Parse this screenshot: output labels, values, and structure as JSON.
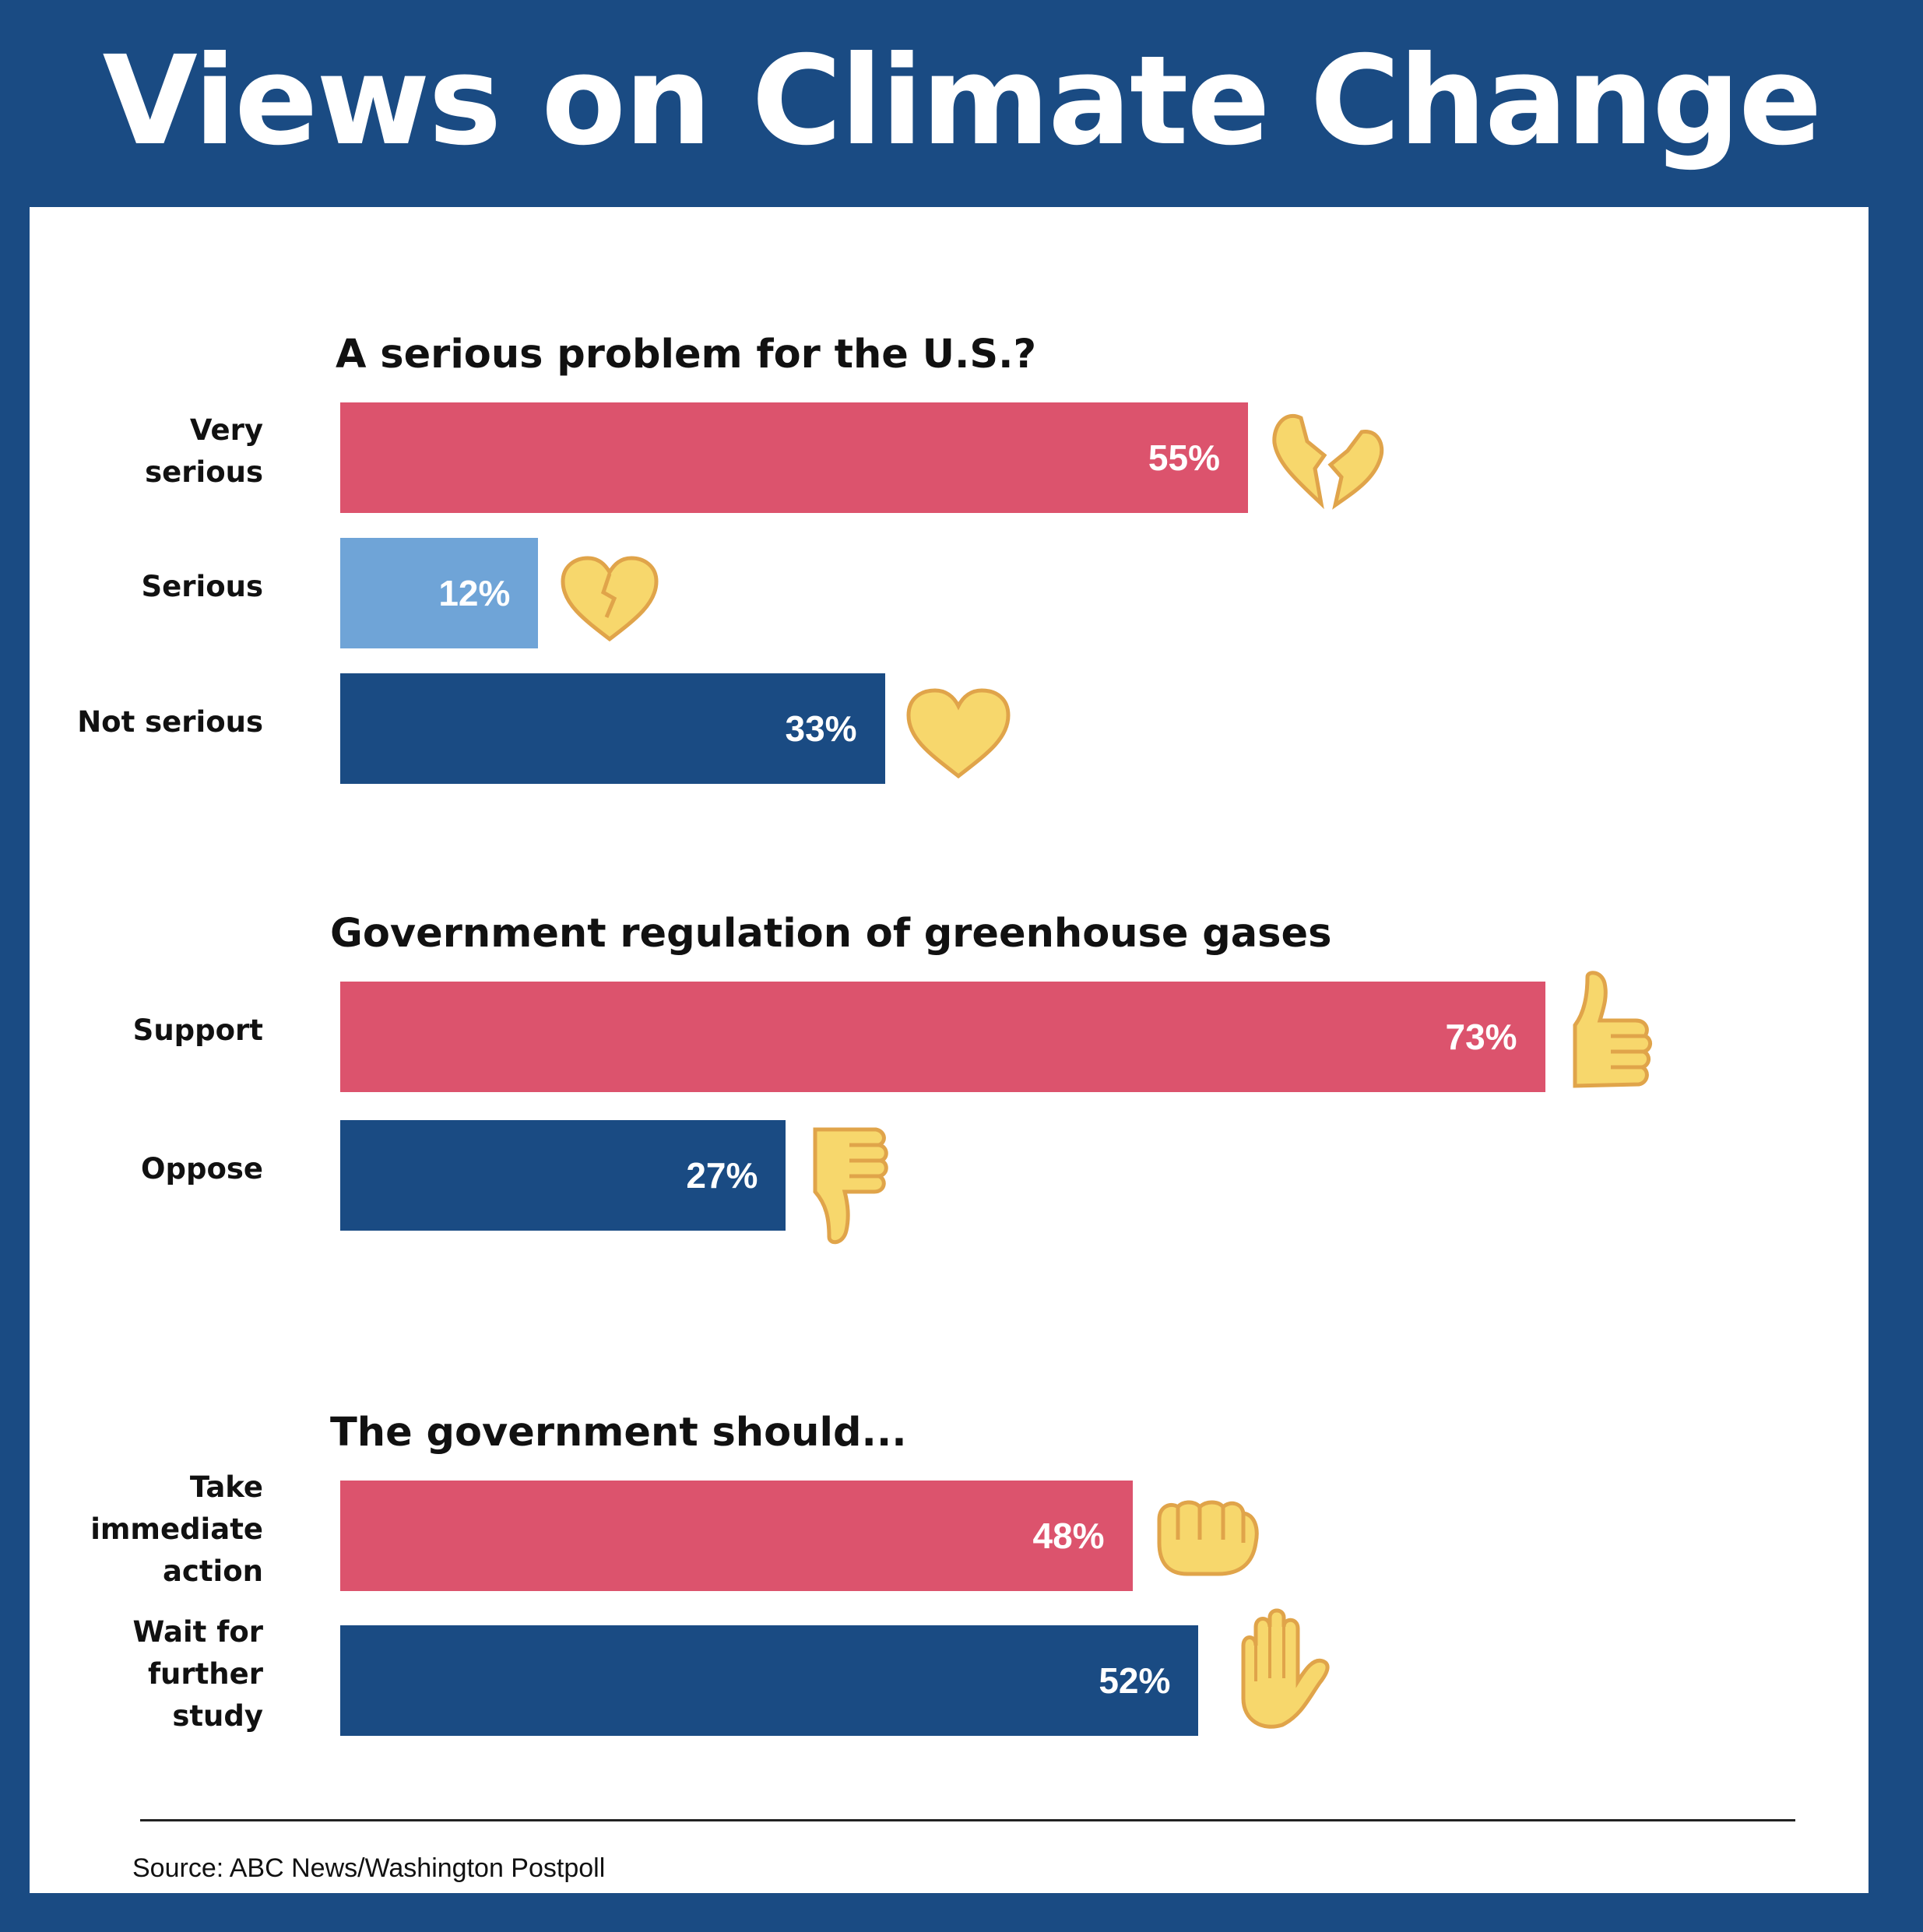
{
  "title": "Views on Climate Change",
  "source": "Source: ABC News/Washington Postpoll",
  "colors": {
    "frame": "#1a4b83",
    "pink": "#dc536d",
    "light_blue": "#6fa4d7",
    "dark_blue": "#1a4b83",
    "emoji": "#f7d76c",
    "emoji_outline": "#e0a44a"
  },
  "chart_data": [
    {
      "type": "bar",
      "orientation": "horizontal",
      "title": "A serious problem for the U.S.?",
      "categories": [
        "Very\nserious",
        "Serious",
        "Not serious"
      ],
      "values": [
        55,
        12,
        33
      ],
      "value_labels": [
        "55%",
        "12%",
        "33%"
      ],
      "colors": [
        "#dc536d",
        "#6fa4d7",
        "#1a4b83"
      ],
      "icons": [
        "broken-heart-icon",
        "cracked-heart-icon",
        "heart-icon"
      ],
      "xlim": [
        0,
        100
      ]
    },
    {
      "type": "bar",
      "orientation": "horizontal",
      "title": "Government regulation of greenhouse gases",
      "categories": [
        "Support",
        "Oppose"
      ],
      "values": [
        73,
        27
      ],
      "value_labels": [
        "73%",
        "27%"
      ],
      "colors": [
        "#dc536d",
        "#1a4b83"
      ],
      "icons": [
        "thumbs-up-icon",
        "thumbs-down-icon"
      ],
      "xlim": [
        0,
        100
      ]
    },
    {
      "type": "bar",
      "orientation": "horizontal",
      "title": "The government should...",
      "categories": [
        "Take\nimmediate\naction",
        "Wait for\nfurther\nstudy"
      ],
      "values": [
        48,
        52
      ],
      "value_labels": [
        "48%",
        "52%"
      ],
      "colors": [
        "#dc536d",
        "#1a4b83"
      ],
      "icons": [
        "fist-icon",
        "raised-hand-icon"
      ],
      "xlim": [
        0,
        100
      ]
    }
  ]
}
